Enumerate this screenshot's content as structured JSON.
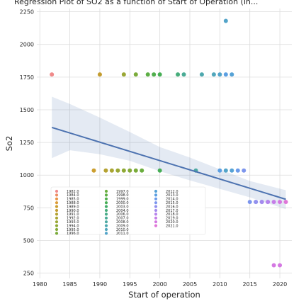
{
  "chart_data": {
    "type": "scatter",
    "title": "Regression Plot of SO2 as a function of Start of Operation (in...",
    "xlabel": "Start of operation",
    "ylabel": "So2",
    "xlim": [
      1979.5,
      2022
    ],
    "ylim": [
      210,
      2275
    ],
    "x_ticks": [
      1980,
      1985,
      1990,
      1995,
      2000,
      2005,
      2010,
      2015,
      2020
    ],
    "y_ticks": [
      250,
      500,
      750,
      1000,
      1250,
      1500,
      1750,
      2000,
      2250
    ],
    "grid": true,
    "legend_placement": "lower-left",
    "series": [
      {
        "name": "1982.0",
        "color": "#f08a8a",
        "x": [
          1982
        ],
        "y": [
          1770
        ]
      },
      {
        "name": "1984.0",
        "color": "#ee8d62",
        "x": [],
        "y": []
      },
      {
        "name": "1985.0",
        "color": "#e99443",
        "x": [],
        "y": []
      },
      {
        "name": "1988.0",
        "color": "#dc9c36",
        "x": [],
        "y": []
      },
      {
        "name": "1989.0",
        "color": "#cc9f30",
        "x": [
          1989
        ],
        "y": [
          1035
        ]
      },
      {
        "name": "1990.0",
        "color": "#c39c2f",
        "x": [
          1990
        ],
        "y": [
          1770
        ]
      },
      {
        "name": "1991.0",
        "color": "#b5a231",
        "x": [
          1991
        ],
        "y": [
          1035
        ]
      },
      {
        "name": "1992.0",
        "color": "#a9a532",
        "x": [
          1992
        ],
        "y": [
          1035
        ]
      },
      {
        "name": "1993.0",
        "color": "#9aa734",
        "x": [
          1993,
          1994
        ],
        "y": [
          1035,
          1770
        ]
      },
      {
        "name": "1994.0",
        "color": "#8fa935",
        "x": [
          1994
        ],
        "y": [
          1035
        ]
      },
      {
        "name": "1995.0",
        "color": "#85aa38",
        "x": [
          1995
        ],
        "y": [
          1035
        ]
      },
      {
        "name": "1996.0",
        "color": "#7aab3a",
        "x": [
          1996,
          1996
        ],
        "y": [
          1035,
          1770
        ]
      },
      {
        "name": "1997.0",
        "color": "#6aad3e",
        "x": [
          1997
        ],
        "y": [
          1035
        ]
      },
      {
        "name": "1998.0",
        "color": "#5cae44",
        "x": [
          1998
        ],
        "y": [
          1770
        ]
      },
      {
        "name": "1999.0",
        "color": "#4fae4c",
        "x": [
          1999
        ],
        "y": [
          1770
        ]
      },
      {
        "name": "2000.0",
        "color": "#46ae55",
        "x": [
          2000,
          2000
        ],
        "y": [
          1770,
          1035
        ]
      },
      {
        "name": "2003.0",
        "color": "#45ad6a",
        "x": [],
        "y": []
      },
      {
        "name": "2004.0",
        "color": "#47ad7b",
        "x": [
          2003
        ],
        "y": [
          1770
        ]
      },
      {
        "name": "2006.0",
        "color": "#48ac88",
        "x": [],
        "y": []
      },
      {
        "name": "2007.0",
        "color": "#4aab95",
        "x": [
          2004
        ],
        "y": [
          1770
        ]
      },
      {
        "name": "2008.0",
        "color": "#4ca9a2",
        "x": [
          2006
        ],
        "y": [
          1035
        ]
      },
      {
        "name": "2009.0",
        "color": "#4ea8ae",
        "x": [
          2007
        ],
        "y": [
          1770
        ]
      },
      {
        "name": "2010.0",
        "color": "#50a6bb",
        "x": [
          2009
        ],
        "y": [
          1770
        ]
      },
      {
        "name": "2011.0",
        "color": "#53a4c9",
        "x": [
          2010,
          2011,
          2011
        ],
        "y": [
          1770,
          2180,
          1035
        ]
      },
      {
        "name": "2012.0",
        "color": "#56a2d6",
        "x": [
          2012,
          2012
        ],
        "y": [
          1035,
          1770
        ]
      },
      {
        "name": "2013.0",
        "color": "#5b9fe2",
        "x": [
          2010,
          2011
        ],
        "y": [
          1035,
          1770
        ]
      },
      {
        "name": "2014.0",
        "color": "#6a9bea",
        "x": [
          2013
        ],
        "y": [
          1035
        ]
      },
      {
        "name": "2015.0",
        "color": "#7d96ed",
        "x": [
          2014,
          2015,
          2016,
          2017,
          2018
        ],
        "y": [
          1035,
          795,
          795,
          795,
          795
        ]
      },
      {
        "name": "2016.0",
        "color": "#9391ee",
        "x": [
          2016
        ],
        "y": [
          795
        ]
      },
      {
        "name": "2017.0",
        "color": "#a58aee",
        "x": [
          2017
        ],
        "y": [
          795
        ]
      },
      {
        "name": "2018.0",
        "color": "#b784ec",
        "x": [
          2018
        ],
        "y": [
          795
        ]
      },
      {
        "name": "2019.0",
        "color": "#c67de8",
        "x": [
          2019
        ],
        "y": [
          795
        ]
      },
      {
        "name": "2020.0",
        "color": "#d478e2",
        "x": [
          2020,
          2019,
          2020
        ],
        "y": [
          795,
          310,
          310
        ]
      },
      {
        "name": "2021.0",
        "color": "#e076d8",
        "x": [
          2021
        ],
        "y": [
          795
        ]
      }
    ],
    "regression": {
      "x": [
        1982,
        2021
      ],
      "y": [
        1365,
        815
      ]
    },
    "confidence_band": {
      "x": [
        1982,
        1985,
        1990,
        1995,
        2000,
        2005,
        2010,
        2015,
        2021
      ],
      "lower": [
        1130,
        1190,
        1160,
        1110,
        1030,
        960,
        895,
        830,
        740
      ],
      "upper": [
        1600,
        1545,
        1440,
        1330,
        1215,
        1135,
        1045,
        955,
        885
      ]
    }
  }
}
